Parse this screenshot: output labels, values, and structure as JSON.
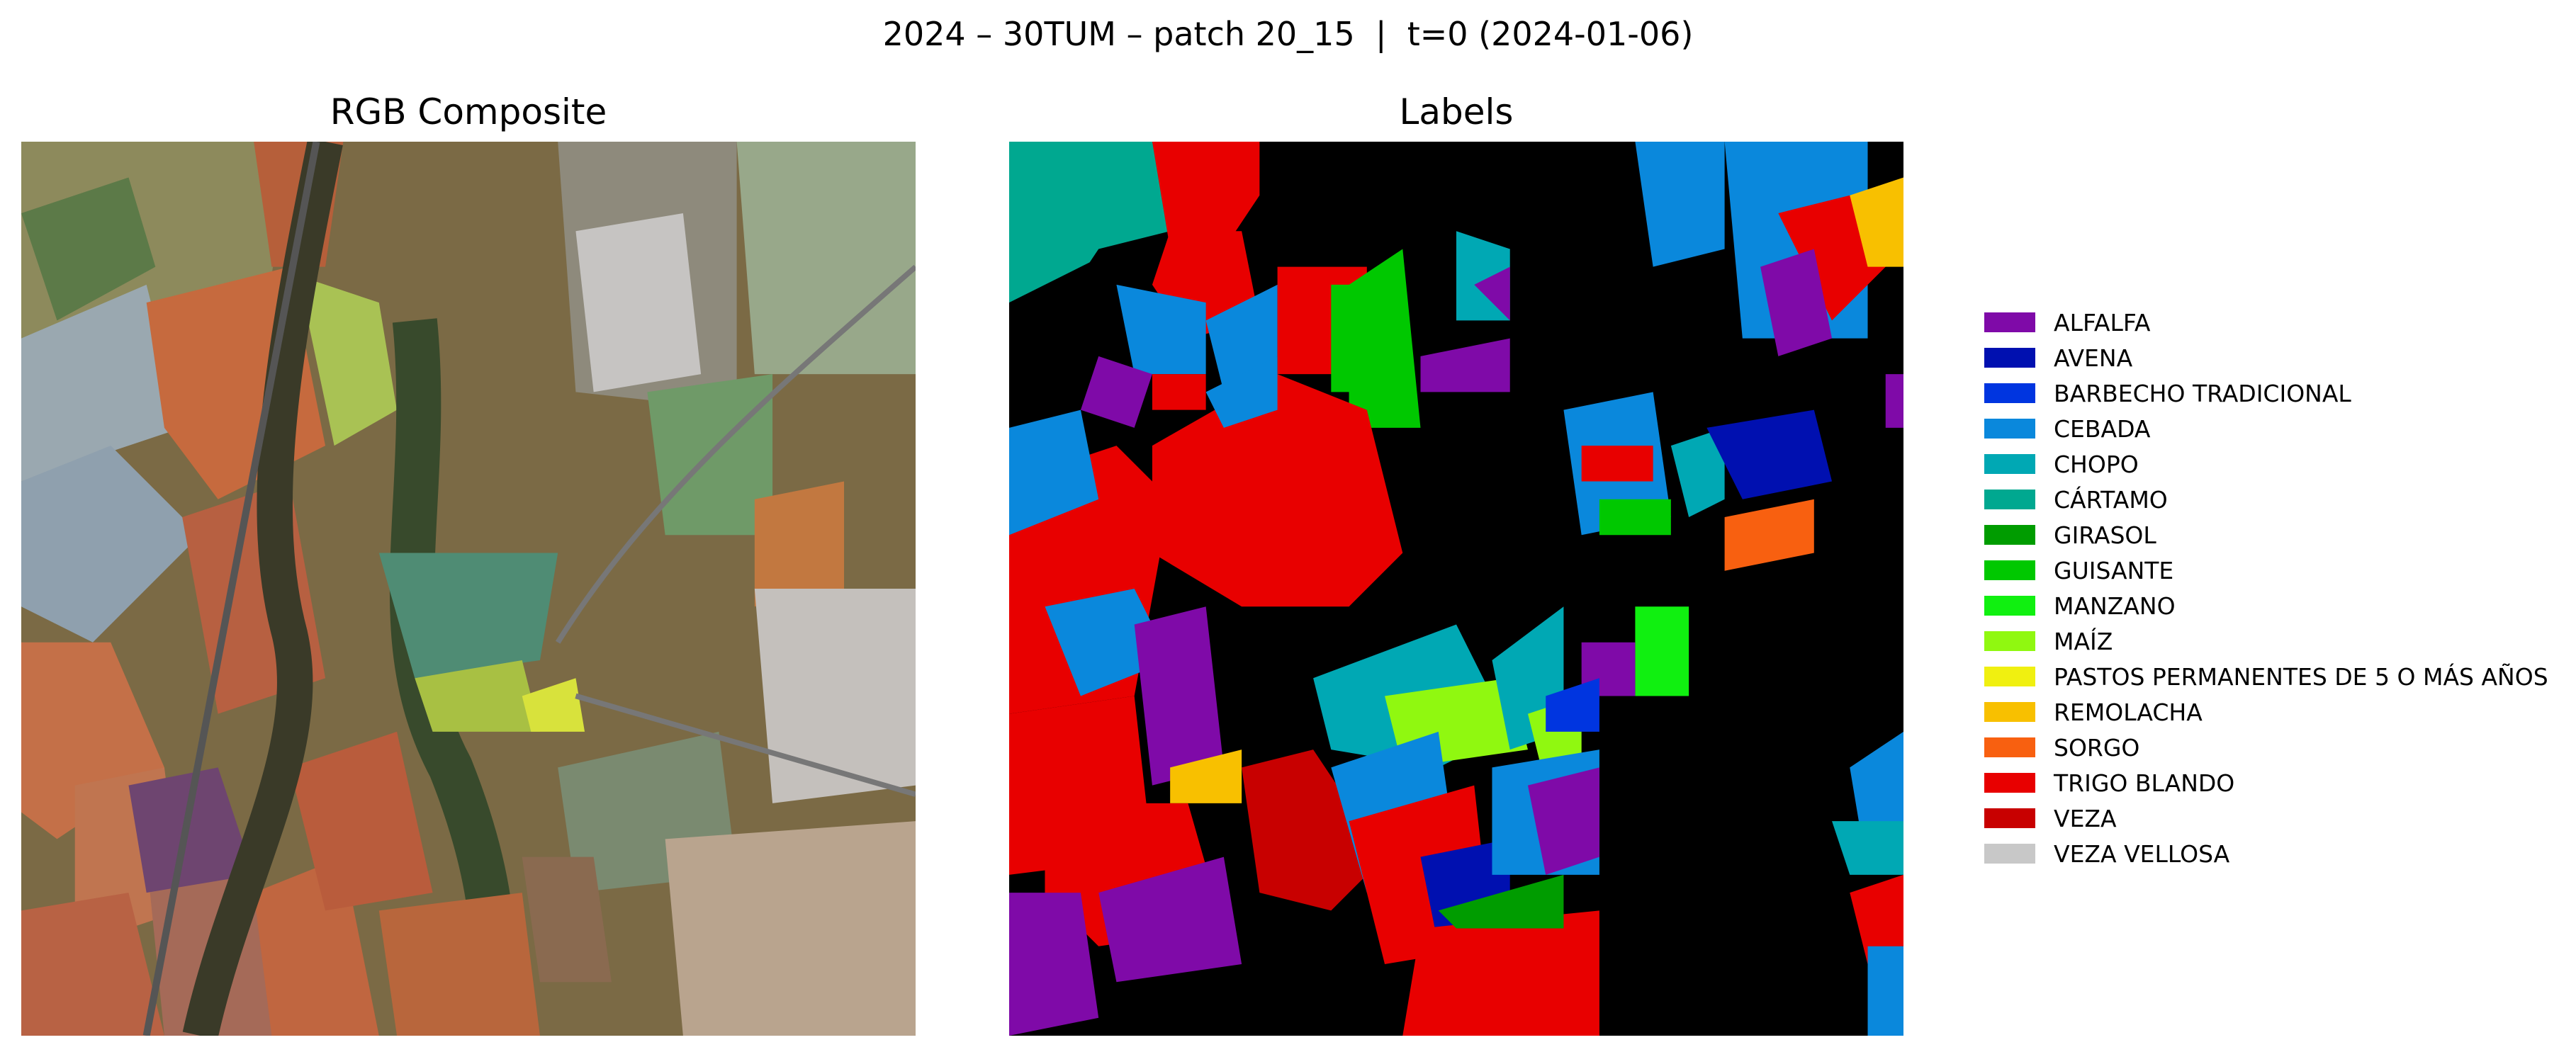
{
  "figure": {
    "title": "2024 – 30TUM – patch 20_15  |  t=0 (2024-01-06)"
  },
  "panels": {
    "rgb": {
      "title": "RGB Composite"
    },
    "labels": {
      "title": "Labels"
    }
  },
  "legend": {
    "items": [
      {
        "label": "ALFALFA",
        "color": "#7f0aa8"
      },
      {
        "label": "AVENA",
        "color": "#0010b0"
      },
      {
        "label": "BARBECHO TRADICIONAL",
        "color": "#0035e0"
      },
      {
        "label": "CEBADA",
        "color": "#0a88dc"
      },
      {
        "label": "CHOPO",
        "color": "#00a8b4"
      },
      {
        "label": "CÁRTAMO",
        "color": "#00a890"
      },
      {
        "label": "GIRASOL",
        "color": "#009c00"
      },
      {
        "label": "GUISANTE",
        "color": "#00c800"
      },
      {
        "label": "MANZANO",
        "color": "#10f010"
      },
      {
        "label": "MAÍZ",
        "color": "#90f810"
      },
      {
        "label": "PASTOS PERMANENTES DE 5 O MÁS AÑOS",
        "color": "#f0f010"
      },
      {
        "label": "REMOLACHA",
        "color": "#f8c000"
      },
      {
        "label": "SORGO",
        "color": "#f86010"
      },
      {
        "label": "TRIGO BLANDO",
        "color": "#e80000"
      },
      {
        "label": "VEZA",
        "color": "#c80000"
      },
      {
        "label": "VEZA VELLOSA",
        "color": "#c8c8c8"
      }
    ]
  }
}
